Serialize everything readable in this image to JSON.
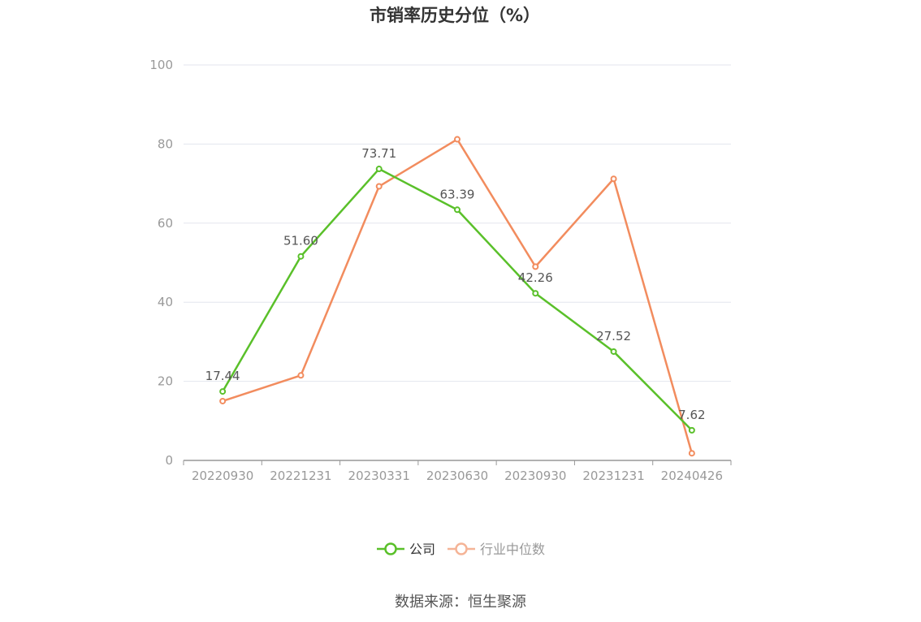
{
  "chart_data": {
    "type": "line",
    "title": "市销率历史分位（%）",
    "categories": [
      "20220930",
      "20221231",
      "20230331",
      "20230630",
      "20230930",
      "20231231",
      "20240426"
    ],
    "ylim": [
      0,
      100
    ],
    "yticks": [
      0,
      20,
      40,
      60,
      80,
      100
    ],
    "grid": true,
    "legend_position": "bottom",
    "series": [
      {
        "name": "公司",
        "color": "#5ac02a",
        "values": [
          17.44,
          51.6,
          73.71,
          63.39,
          42.26,
          27.52,
          7.62
        ],
        "labels": [
          "17.44",
          "51.60",
          "73.71",
          "63.39",
          "42.26",
          "27.52",
          "7.62"
        ]
      },
      {
        "name": "行业中位数",
        "color": "#f28c5e",
        "values": [
          15.0,
          21.5,
          69.3,
          81.2,
          49.0,
          71.2,
          1.8
        ]
      }
    ]
  },
  "legend": {
    "items": [
      {
        "label": "公司",
        "color": "#5ac02a",
        "text_color": "#333333"
      },
      {
        "label": "行业中位数",
        "color": "#f5b497",
        "text_color": "#999999"
      }
    ]
  },
  "source": "数据来源：恒生聚源"
}
